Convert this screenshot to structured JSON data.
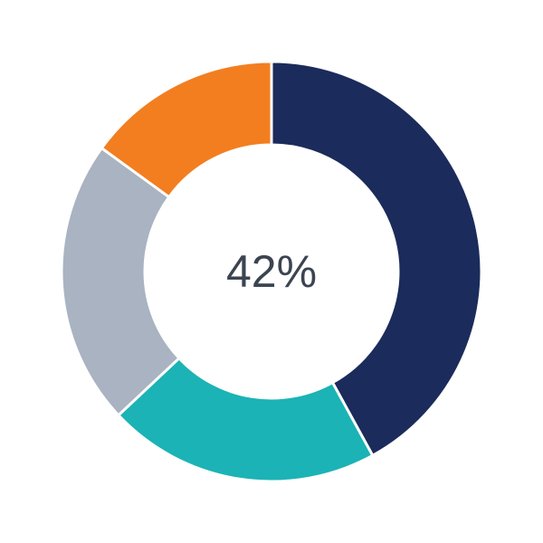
{
  "chart_data": {
    "type": "pie",
    "variant": "donut",
    "center_label": "42%",
    "slices": [
      {
        "value": 42,
        "color": "#1b2b5b"
      },
      {
        "value": 21,
        "color": "#1bb3b6"
      },
      {
        "value": 22,
        "color": "#a9b3c1"
      },
      {
        "value": 15,
        "color": "#f37e20"
      }
    ],
    "start_angle": "top",
    "direction": "clockwise",
    "legend": "none"
  }
}
